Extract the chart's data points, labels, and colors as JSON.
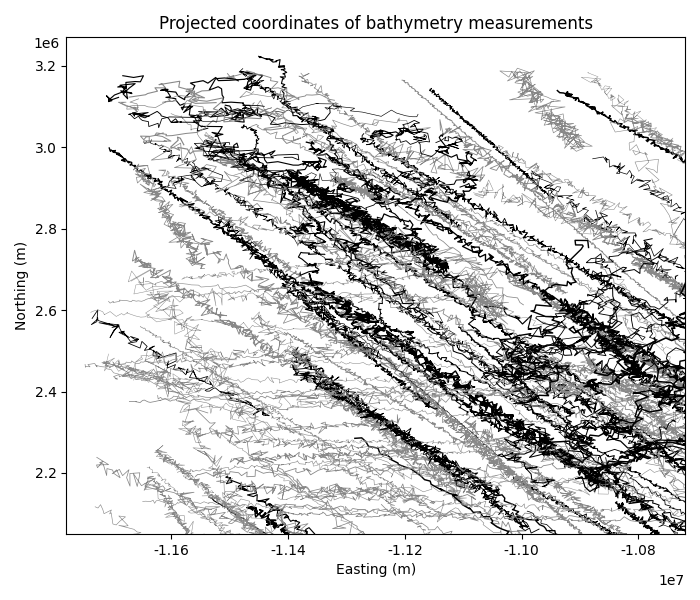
{
  "title": "Projected coordinates of bathymetry measurements",
  "xlabel": "Easting (m)",
  "ylabel": "Northing (m)",
  "xlim": [
    -11780000,
    -10720000
  ],
  "ylim": [
    2050000,
    3270000
  ],
  "line_color_dark": "#000000",
  "line_color_light": "#888888",
  "seed": 7,
  "figsize": [
    7.0,
    6.0
  ],
  "dpi": 100
}
